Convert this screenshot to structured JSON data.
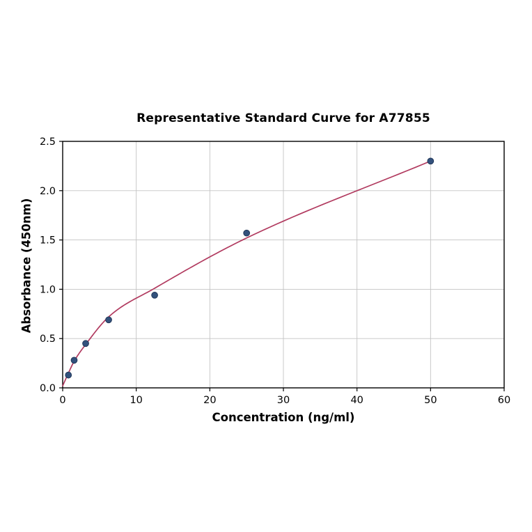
{
  "chart_data": {
    "type": "scatter",
    "title": "Representative Standard Curve for A77855",
    "xlabel": "Concentration (ng/ml)",
    "ylabel": "Absorbance (450nm)",
    "xlim": [
      0,
      60
    ],
    "ylim": [
      0,
      2.5
    ],
    "xticks": [
      0,
      10,
      20,
      30,
      40,
      50,
      60
    ],
    "xtick_labels": [
      "0",
      "10",
      "20",
      "30",
      "40",
      "50",
      "60"
    ],
    "yticks": [
      0,
      0.5,
      1.0,
      1.5,
      2.0,
      2.5
    ],
    "ytick_labels": [
      "0.0",
      "0.5",
      "1.0",
      "1.5",
      "2.0",
      "2.5"
    ],
    "grid": true,
    "legend": "none",
    "points": {
      "x": [
        0.78,
        1.56,
        3.125,
        6.25,
        12.5,
        25,
        50
      ],
      "y": [
        0.13,
        0.28,
        0.45,
        0.69,
        0.94,
        1.57,
        2.3
      ]
    },
    "fit_curve": {
      "anchors_x": [
        0,
        0.78,
        1.56,
        3.125,
        6.25,
        12.5,
        25,
        50
      ],
      "anchors_y": [
        0.02,
        0.15,
        0.27,
        0.44,
        0.72,
        1.01,
        1.52,
        2.3
      ]
    },
    "colors": {
      "curve": "#b13a5f",
      "point_fill": "#33517c",
      "point_edge": "#1d3354",
      "grid": "#c3c3c3",
      "frame": "#000000",
      "tick_text": "#000000"
    }
  }
}
